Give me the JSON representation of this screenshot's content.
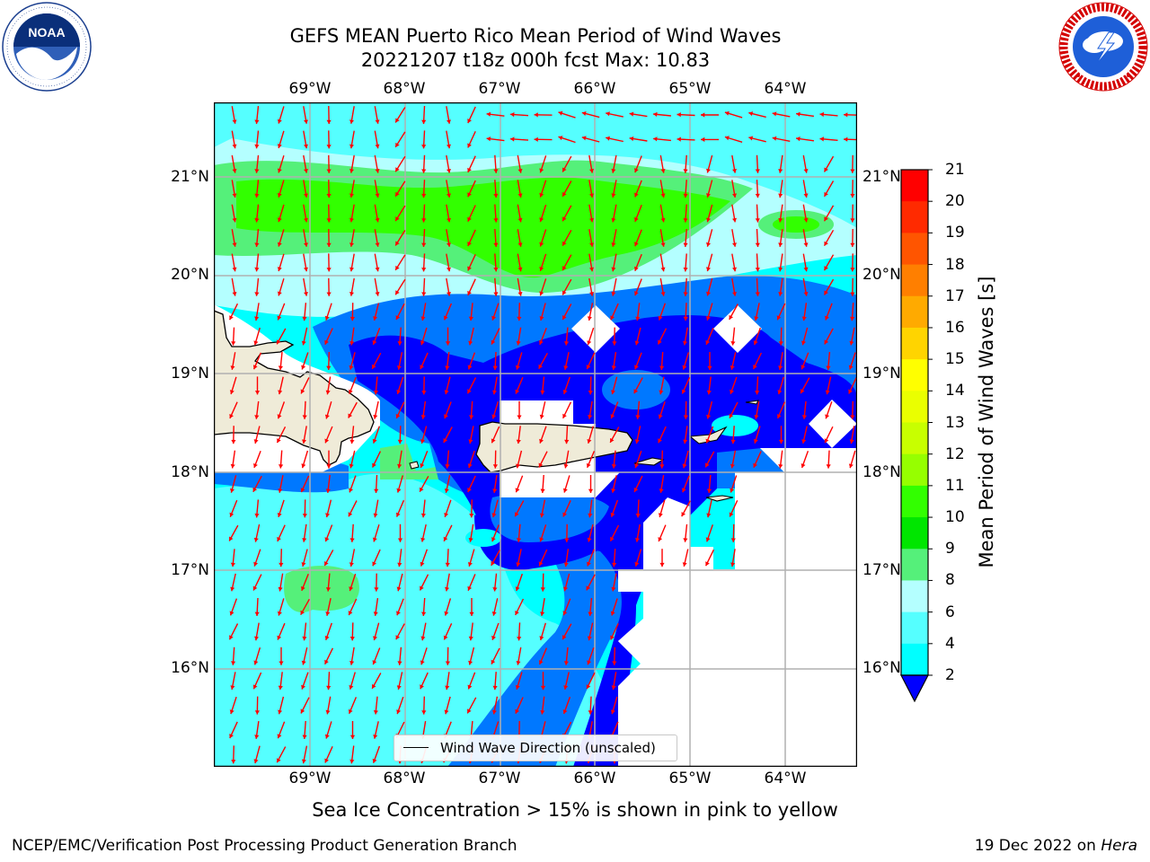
{
  "header": {
    "title_line1": "GEFS MEAN Puerto Rico Mean Period of Wind Waves",
    "title_line2": "20221207 t18z 000h fcst   Max: 10.83"
  },
  "map": {
    "lon_ticks": [
      "69°W",
      "68°W",
      "67°W",
      "66°W",
      "65°W",
      "64°W"
    ],
    "lat_ticks": [
      "21°N",
      "20°N",
      "19°N",
      "18°N",
      "17°N",
      "16°N"
    ],
    "lon_range": [
      -70.0,
      -63.25
    ],
    "lat_range": [
      15.0,
      21.75
    ],
    "gridlines": true,
    "land_color": "#efebd8",
    "arrow_color": "#ff0000",
    "legend_label": "Wind Wave Direction (unscaled)",
    "dominant_wave_direction": "south / south-southwest"
  },
  "colorbar": {
    "label": "Mean Period of Wind Waves [s]",
    "ticks": [
      "21",
      "20",
      "19",
      "18",
      "17",
      "16",
      "15",
      "14",
      "13",
      "12",
      "11",
      "10",
      "9",
      "8",
      "6",
      "4",
      "2"
    ],
    "colors": [
      "#ff0000",
      "#ff2a00",
      "#ff5500",
      "#ff7f00",
      "#ffaa00",
      "#ffd400",
      "#ffff00",
      "#eaff00",
      "#c8ff00",
      "#96ff00",
      "#32ff00",
      "#00e600",
      "#55f07a",
      "#b4ffff",
      "#55ffff",
      "#00ffff",
      "#0078ff",
      "#0000ff"
    ],
    "extend": "min"
  },
  "chart_data": {
    "type": "heatmap",
    "title": "GEFS MEAN Puerto Rico Mean Period of Wind Waves",
    "subtitle": "20221207 t18z 000h fcst   Max: 10.83",
    "variable": "Mean Period of Wind Waves [s]",
    "max": 10.83,
    "levels": [
      2,
      4,
      6,
      8,
      9,
      10,
      11,
      12,
      13,
      14,
      15,
      16,
      17,
      18,
      19,
      20,
      21
    ],
    "regions": [
      {
        "area": "north band near 20.5°N, 69.5°W–65.5°W",
        "value_range": [
          10,
          11
        ]
      },
      {
        "area": "south coast of Hispaniola near 16.8°N, 69.2°W",
        "value_range": [
          9,
          10
        ]
      },
      {
        "area": "open Caribbean south of 18°N, west of 67°W",
        "value_range": [
          6,
          8
        ]
      },
      {
        "area": "waters around Puerto Rico and Virgin Islands",
        "value_range": [
          2,
          4
        ]
      }
    ]
  },
  "notes": {
    "ice": "Sea Ice Concentration > 15% is shown in pink to yellow"
  },
  "footer": {
    "left": "NCEP/EMC/Verification Post Processing Product Generation Branch",
    "date": "19 Dec 2022 on ",
    "host": "Hera"
  },
  "logos": {
    "noaa_text": "NOAA",
    "noaa_ring": "NATIONAL OCEANIC AND ATMOSPHERIC ADMINISTRATION · U.S. DEPARTMENT OF COMMERCE",
    "nws_ring": "NATIONAL WEATHER SERVICE"
  }
}
